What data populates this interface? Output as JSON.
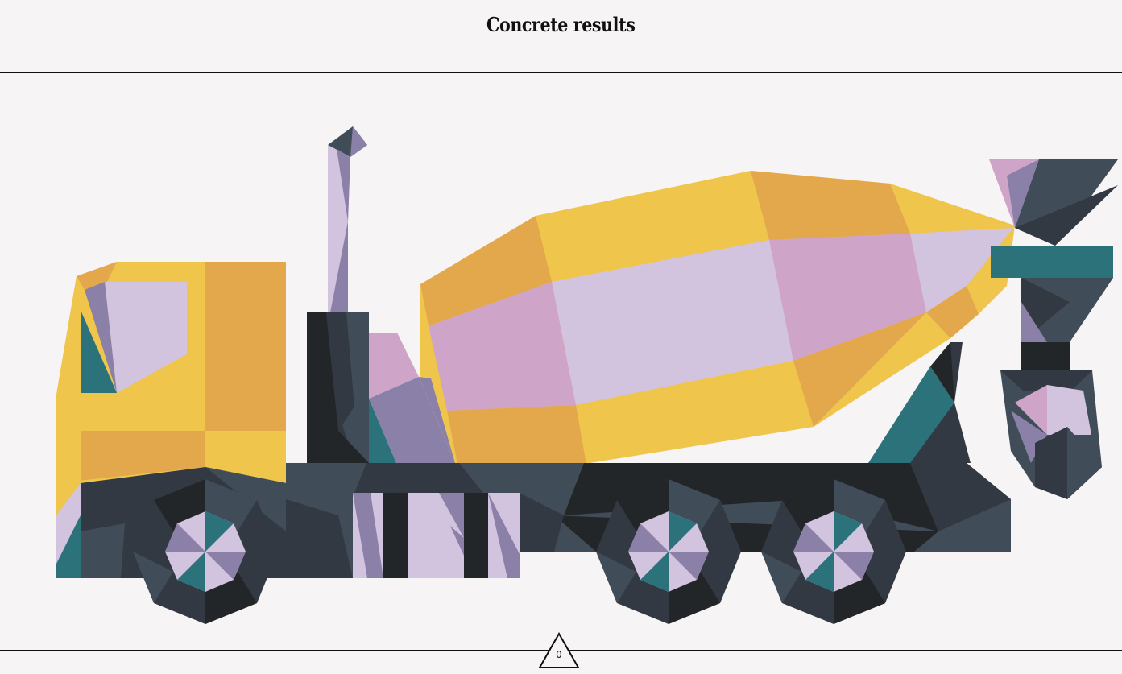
{
  "header": {
    "title": "Concrete results"
  },
  "illustration": {
    "subject": "concrete-mixer-truck"
  },
  "footer": {
    "counter_value": "0"
  },
  "colors": {
    "background": "#f6f4f4",
    "yellow": "#efc54c",
    "orange": "#e3a84c",
    "pink": "#cfa4c9",
    "lavender": "#d2c3de",
    "purple": "#8a80a8",
    "teal": "#2c727b",
    "slate": "#404c58",
    "dark": "#333943",
    "black": "#232628"
  }
}
